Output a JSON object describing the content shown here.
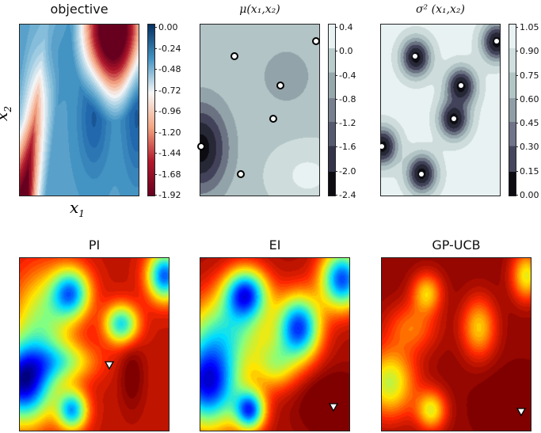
{
  "chart_data": [
    {
      "type": "heatmap",
      "title": "objective",
      "xlabel": "x1",
      "ylabel": "x2",
      "colormap": "RdBu",
      "colorbar_ticks": [
        "0.00",
        "-0.24",
        "-0.48",
        "-0.72",
        "-0.96",
        "-1.20",
        "-1.44",
        "-1.68",
        "-1.92"
      ],
      "zlim": [
        -2.0,
        0.0
      ]
    },
    {
      "type": "heatmap",
      "title": "μ(x1,x2)",
      "colormap": "bone",
      "colorbar_ticks": [
        "0.4",
        "0.0",
        "-0.4",
        "-0.8",
        "-1.2",
        "-1.6",
        "-2.0",
        "-2.4"
      ],
      "zlim": [
        -2.4,
        0.4
      ],
      "samples": [
        {
          "x1": 0.29,
          "x2": 0.19
        },
        {
          "x1": 0.97,
          "x2": 0.1
        },
        {
          "x1": 0.67,
          "x2": 0.36
        },
        {
          "x1": 0.61,
          "x2": 0.55
        },
        {
          "x1": 0.01,
          "x2": 0.71
        },
        {
          "x1": 0.34,
          "x2": 0.87
        }
      ]
    },
    {
      "type": "heatmap",
      "title": "σ²(x1,x2)",
      "colormap": "bone",
      "colorbar_ticks": [
        "1.05",
        "0.90",
        "0.75",
        "0.60",
        "0.45",
        "0.30",
        "0.15",
        "0.00"
      ],
      "zlim": [
        0.0,
        1.05
      ]
    },
    {
      "type": "heatmap",
      "title": "PI",
      "colormap": "jet",
      "next_point": {
        "x1": 0.6,
        "x2": 0.6
      }
    },
    {
      "type": "heatmap",
      "title": "EI",
      "colormap": "jet",
      "next_point": {
        "x1": 0.89,
        "x2": 0.84
      }
    },
    {
      "type": "heatmap",
      "title": "GP-UCB",
      "colormap": "jet",
      "next_point": {
        "x1": 0.93,
        "x2": 0.87
      }
    }
  ],
  "labels": {
    "x1": "x",
    "x1_sub": "1",
    "x2": "x",
    "x2_sub": "2",
    "mu": "μ(x₁,x₂)",
    "sigma": "σ² (x₁,x₂)"
  }
}
